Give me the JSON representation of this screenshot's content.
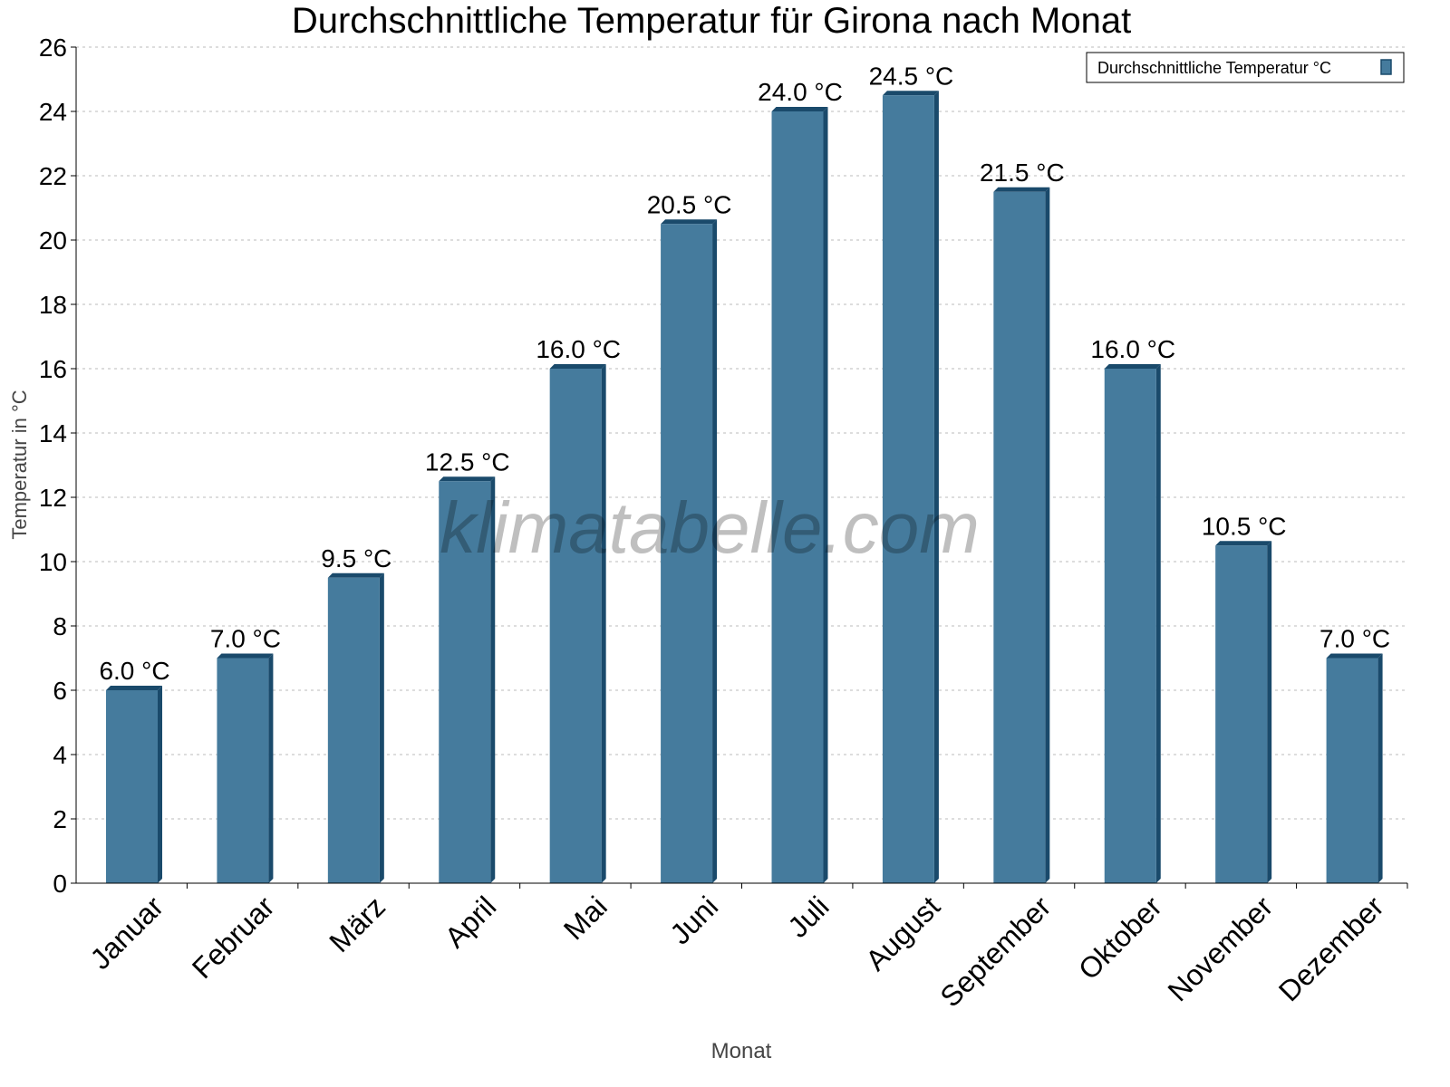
{
  "chart_data": {
    "type": "bar",
    "title": "Durchschnittliche Temperatur für Girona nach Monat",
    "xlabel": "Monat",
    "ylabel": "Temperatur in °C",
    "categories": [
      "Januar",
      "Februar",
      "März",
      "April",
      "Mai",
      "Juni",
      "Juli",
      "August",
      "September",
      "Oktober",
      "November",
      "Dezember"
    ],
    "series": [
      {
        "name": "Durchschnittliche Temperatur °C",
        "values": [
          6.0,
          7.0,
          9.5,
          12.5,
          16.0,
          20.5,
          24.0,
          24.5,
          21.5,
          16.0,
          10.5,
          7.0
        ],
        "color": "#457b9d",
        "side_color": "#1a4a6b"
      }
    ],
    "data_labels": [
      "6.0 °C",
      "7.0 °C",
      "9.5 °C",
      "12.5 °C",
      "16.0 °C",
      "20.5 °C",
      "24.0 °C",
      "24.5 °C",
      "21.5 °C",
      "16.0 °C",
      "10.5 °C",
      "7.0 °C"
    ],
    "ylim": [
      0,
      26
    ],
    "yticks": [
      "0",
      "2",
      "4",
      "6",
      "8",
      "10",
      "12",
      "14",
      "16",
      "18",
      "20",
      "22",
      "24",
      "26"
    ],
    "grid": true,
    "legend_position": "top-right",
    "watermark": "klimatabelle.com"
  }
}
